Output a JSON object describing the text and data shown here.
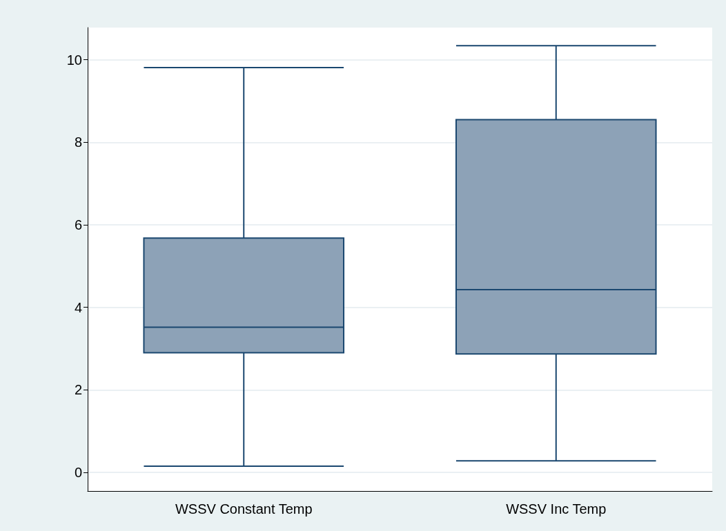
{
  "chart_data": {
    "type": "box",
    "categories": [
      "WSSV Constant Temp",
      "WSSV Inc Temp"
    ],
    "boxes": [
      {
        "low": 0.15,
        "q1": 2.9,
        "median": 3.52,
        "q3": 5.68,
        "high": 9.81
      },
      {
        "low": 0.28,
        "q1": 2.87,
        "median": 4.43,
        "q3": 8.55,
        "high": 10.34
      }
    ],
    "color": "#8da2b7",
    "ylim": [
      -0.45,
      10.78
    ],
    "yticks": [
      0,
      2,
      4,
      6,
      8,
      10
    ],
    "grid": "y"
  }
}
